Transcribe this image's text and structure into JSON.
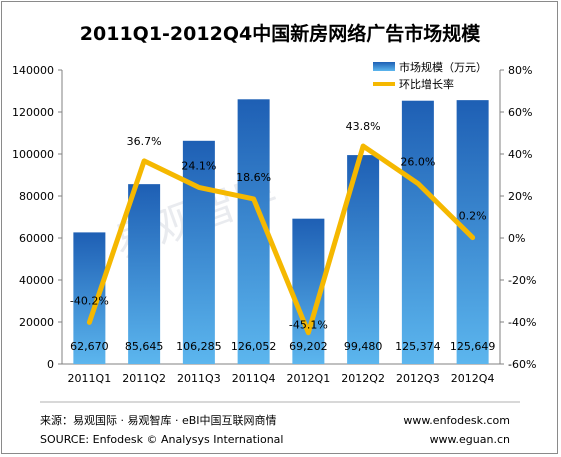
{
  "chart_data": {
    "type": "bar",
    "title": "2011Q1-2012Q4中国新房网络广告市场规模",
    "categories": [
      "2011Q1",
      "2011Q2",
      "2011Q3",
      "2011Q4",
      "2012Q1",
      "2012Q2",
      "2012Q3",
      "2012Q4"
    ],
    "series": [
      {
        "name": "市场规模（万元）",
        "type": "bar",
        "axis": "left",
        "values": [
          62670,
          85645,
          106285,
          126052,
          69202,
          99480,
          125374,
          125649
        ],
        "labels": [
          "62,670",
          "85,645",
          "106,285",
          "126,052",
          "69,202",
          "99,480",
          "125,374",
          "125,649"
        ]
      },
      {
        "name": "环比增长率",
        "type": "line",
        "axis": "right",
        "values": [
          -40.2,
          36.7,
          24.1,
          18.6,
          -45.1,
          43.8,
          26.0,
          0.2
        ],
        "labels": [
          "-40.2%",
          "36.7%",
          "24.1%",
          "18.6%",
          "-45.1%",
          "43.8%",
          "26.0%",
          "0.2%"
        ]
      }
    ],
    "y_left": {
      "min": 0,
      "max": 140000,
      "ticks": [
        "0",
        "20000",
        "40000",
        "60000",
        "80000",
        "100000",
        "120000",
        "140000"
      ]
    },
    "y_right": {
      "min": -60,
      "max": 80,
      "ticks": [
        "-60%",
        "-40%",
        "-20%",
        "0%",
        "20%",
        "40%",
        "60%",
        "80%"
      ]
    },
    "legend_position": "top-right",
    "grid": false,
    "colors": {
      "bar_top": "#1e5fb4",
      "bar_bottom": "#5cb6ee",
      "line": "#f5b800"
    }
  },
  "watermark": "易观智库",
  "footer": {
    "source_cn": "来源：易观国际 · 易观智库 · eBI中国互联网商情",
    "source_en": "SOURCE: Enfodesk © Analysys International",
    "url1": "www.enfodesk.com",
    "url2": "www.eguan.cn"
  }
}
